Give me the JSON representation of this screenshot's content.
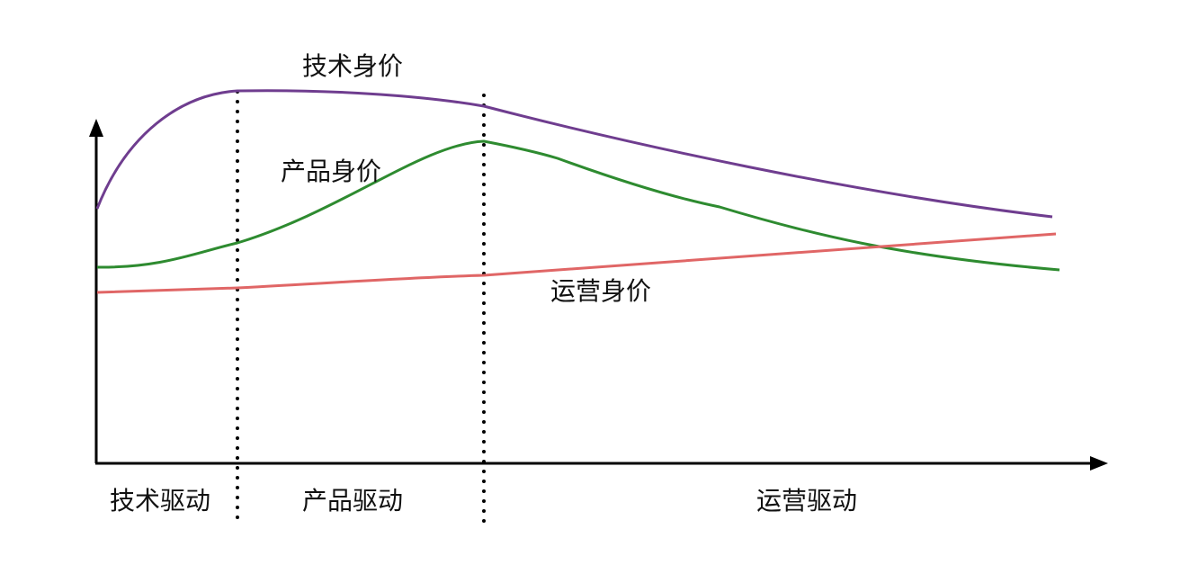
{
  "curves": [
    {
      "label": "技术身价"
    },
    {
      "label": "产品身价"
    },
    {
      "label": "运营身价"
    }
  ],
  "phases": [
    {
      "label": "技术驱动"
    },
    {
      "label": "产品驱动"
    },
    {
      "label": "运营驱动"
    }
  ]
}
